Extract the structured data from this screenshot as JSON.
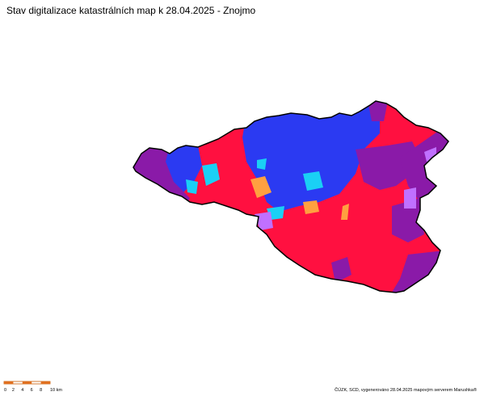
{
  "header": {
    "title": "Stav digitalizace katastrálních map k 28.04.2025 - Znojmo"
  },
  "scale_bar": {
    "labels": [
      "0",
      "2",
      "4",
      "6",
      "8",
      "10 km"
    ]
  },
  "footer": {
    "credit": "ČÚZK, SCD, vygenerováno 28.04.2025 mapovým serverem Marushka®"
  }
}
